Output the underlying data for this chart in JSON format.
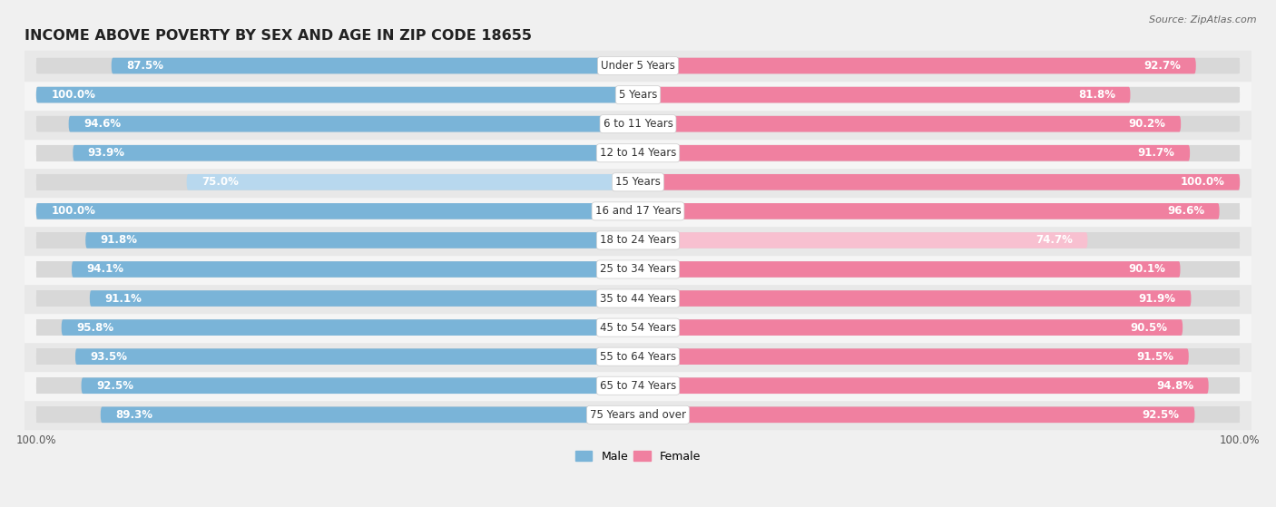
{
  "title": "INCOME ABOVE POVERTY BY SEX AND AGE IN ZIP CODE 18655",
  "source": "Source: ZipAtlas.com",
  "categories": [
    "Under 5 Years",
    "5 Years",
    "6 to 11 Years",
    "12 to 14 Years",
    "15 Years",
    "16 and 17 Years",
    "18 to 24 Years",
    "25 to 34 Years",
    "35 to 44 Years",
    "45 to 54 Years",
    "55 to 64 Years",
    "65 to 74 Years",
    "75 Years and over"
  ],
  "male_values": [
    87.5,
    100.0,
    94.6,
    93.9,
    75.0,
    100.0,
    91.8,
    94.1,
    91.1,
    95.8,
    93.5,
    92.5,
    89.3
  ],
  "female_values": [
    92.7,
    81.8,
    90.2,
    91.7,
    100.0,
    96.6,
    74.7,
    90.1,
    91.9,
    90.5,
    91.5,
    94.8,
    92.5
  ],
  "male_color": "#7ab4d8",
  "male_color_light": "#b8d8ee",
  "female_color": "#f080a0",
  "female_color_light": "#f8c0d0",
  "male_label": "Male",
  "female_label": "Female",
  "background_color": "#f0f0f0",
  "row_color_odd": "#e8e8e8",
  "row_color_even": "#f5f5f5",
  "title_fontsize": 11.5,
  "label_fontsize": 8.5,
  "value_fontsize": 8.5,
  "max_val": 100.0,
  "legend_fontsize": 9,
  "source_fontsize": 8
}
